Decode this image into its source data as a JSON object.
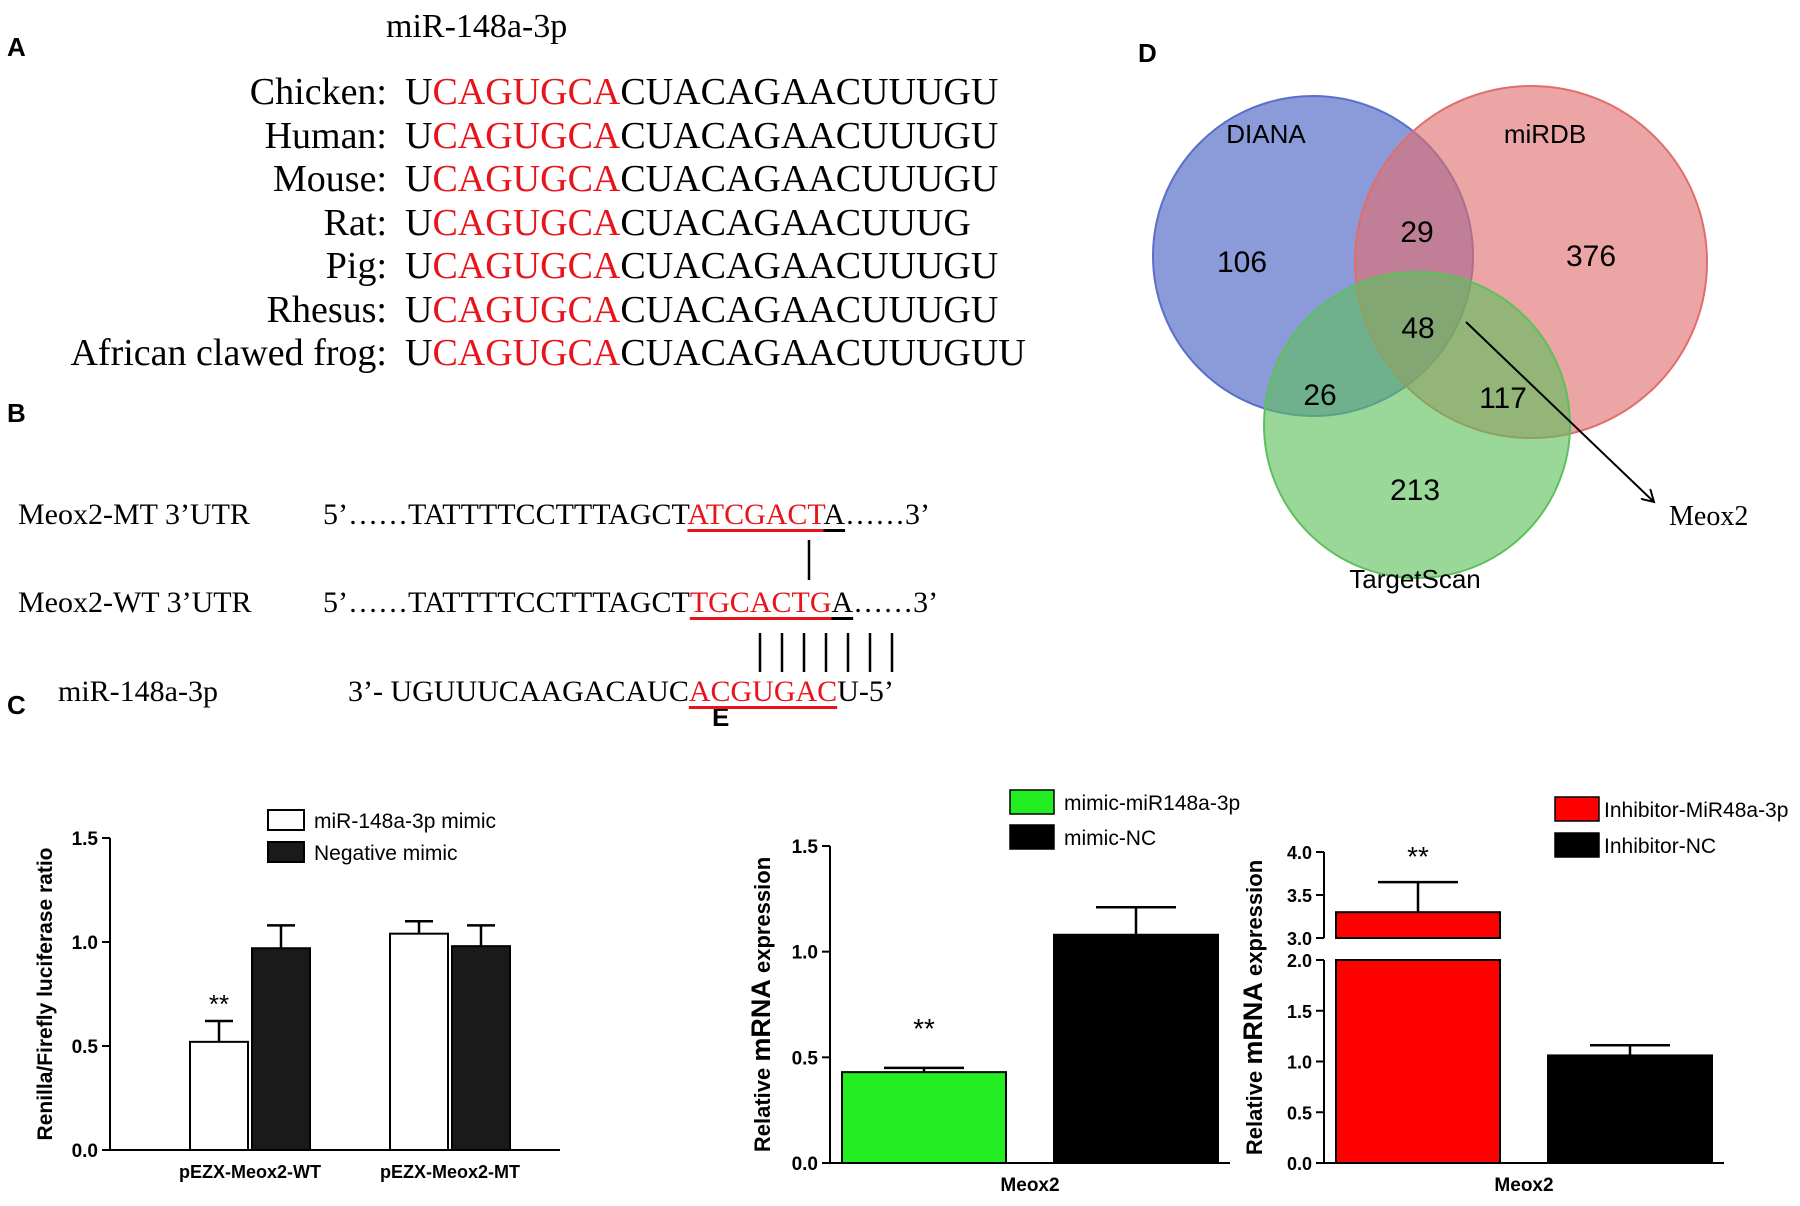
{
  "panels": {
    "A": {
      "letter": "A",
      "title": "miR-148a-3p",
      "rows": [
        {
          "species": "Chicken:",
          "pre": "U",
          "seed": "CAGUGCA",
          "post": "CUACAGAACUUUGU"
        },
        {
          "species": "Human:",
          "pre": "U",
          "seed": "CAGUGCA",
          "post": "CUACAGAACUUUGU"
        },
        {
          "species": "Mouse:",
          "pre": "U",
          "seed": "CAGUGCA",
          "post": "CUACAGAACUUUGU"
        },
        {
          "species": "Rat:",
          "pre": "U",
          "seed": "CAGUGCA",
          "post": "CUACAGAACUUUG"
        },
        {
          "species": "Pig:",
          "pre": "U",
          "seed": "CAGUGCA",
          "post": "CUACAGAACUUUGU"
        },
        {
          "species": "Rhesus:",
          "pre": "U",
          "seed": "CAGUGCA",
          "post": "CUACAGAACUUUGU"
        },
        {
          "species": "African clawed frog:",
          "pre": "U",
          "seed": "CAGUGCA",
          "post": "CUACAGAACUUUGUU"
        }
      ]
    },
    "B": {
      "letter": "B",
      "mt": {
        "name": "Meox2-MT 3’UTR",
        "pre": "5’……TATTTTCCTTTAGCT",
        "site": "ATCGACT",
        "post": "A",
        "tail": "……3’"
      },
      "wt": {
        "name": "Meox2-WT 3’UTR",
        "pre": "5’……TATTTTCCTTTAGCT",
        "site": "TGCACTG",
        "post": "A",
        "tail": "……3’"
      },
      "mir": {
        "name": "miR-148a-3p",
        "pre": "3’- UGUUUCAAGACAUC",
        "site": "ACGUGAC",
        "post": "U-5’"
      }
    },
    "C": {
      "letter": "C"
    },
    "D": {
      "letter": "D",
      "labels": {
        "diana": "DIANA",
        "mirdb": "miRDB",
        "targetscan": "TargetScan",
        "target": "Meox2"
      },
      "counts": {
        "diana_only": "106",
        "diana_mirdb": "29",
        "mirdb_only": "376",
        "all": "48",
        "diana_ts": "26",
        "mirdb_ts": "117",
        "ts_only": "213"
      },
      "colors": {
        "diana": "#5a6fc9",
        "mirdb": "#e16d6d",
        "targetscan": "#5cc05c"
      }
    },
    "E": {
      "letter": "E"
    }
  },
  "chart_data": [
    {
      "id": "C",
      "type": "bar",
      "categories": [
        "pEZX-Meox2-WT",
        "pEZX-Meox2-MT"
      ],
      "series": [
        {
          "name": "miR-148a-3p mimic",
          "values": [
            0.52,
            1.04
          ],
          "errors": [
            0.1,
            0.06
          ],
          "color": "#ffffff"
        },
        {
          "name": "Negative mimic",
          "values": [
            0.97,
            0.98
          ],
          "errors": [
            0.11,
            0.1
          ],
          "color": "#1a1a1a"
        }
      ],
      "ylabel": "Renilla/Firefly luciferase ratio",
      "ylim": [
        0,
        1.5
      ],
      "yticks": [
        "0.0",
        "0.5",
        "1.0",
        "1.5"
      ],
      "annotations": [
        {
          "text": "**",
          "category": "pEZX-Meox2-WT",
          "series": "miR-148a-3p mimic"
        }
      ],
      "legend": "top-right"
    },
    {
      "id": "E-left",
      "type": "bar",
      "categories": [
        "Meox2"
      ],
      "series": [
        {
          "name": "mimic-miR148a-3p",
          "values": [
            0.43
          ],
          "errors": [
            0.02
          ],
          "color": "#22ee22"
        },
        {
          "name": "mimic-NC",
          "values": [
            1.08
          ],
          "errors": [
            0.13
          ],
          "color": "#000000"
        }
      ],
      "ylabel_pre": "Relative ",
      "ylabel_main": "mRNA",
      "ylabel_post": " expression",
      "ylim": [
        0,
        1.5
      ],
      "yticks": [
        "0.0",
        "0.5",
        "1.0",
        "1.5"
      ],
      "annotations": [
        {
          "text": "**",
          "series": "mimic-miR148a-3p"
        }
      ],
      "legend": "top"
    },
    {
      "id": "E-right",
      "type": "bar",
      "categories": [
        "Meox2"
      ],
      "series": [
        {
          "name": "Inhibitor-MiR48a-3p",
          "values": [
            3.3
          ],
          "errors": [
            0.35
          ],
          "color": "#ff0000"
        },
        {
          "name": "Inhibitor-NC",
          "values": [
            1.06
          ],
          "errors": [
            0.1
          ],
          "color": "#000000"
        }
      ],
      "ylabel_pre": "Relative ",
      "ylabel_main": "mRNA",
      "ylabel_post": " expression",
      "ylim": [
        0,
        4.0
      ],
      "axis_break": [
        2.0,
        3.0
      ],
      "yticks": [
        "0.0",
        "0.5",
        "1.0",
        "1.5",
        "2.0",
        "3.0",
        "3.5",
        "4.0"
      ],
      "annotations": [
        {
          "text": "**",
          "series": "Inhibitor-MiR48a-3p"
        }
      ],
      "legend": "top-right"
    }
  ]
}
